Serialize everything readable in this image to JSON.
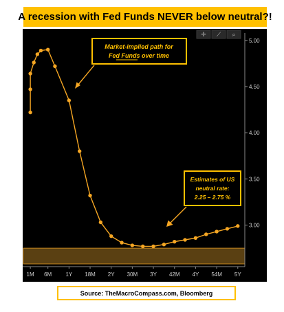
{
  "title": "A recession with Fed Funds NEVER below neutral?!",
  "source": "Source: TheMacroCompass.com, Bloomberg",
  "toolbar": {
    "icons": [
      "move-icon",
      "draw-icon",
      "zoom-icon"
    ],
    "move_glyph": "✛",
    "draw_glyph": "⟋",
    "zoom_glyph": "⌕"
  },
  "annotations": {
    "path_label": {
      "lines": [
        "Market-implied path for",
        "Fed Funds over time"
      ]
    },
    "neutral_label": {
      "lines": [
        "Estimates of US",
        "neutral rate:",
        "2.25 – 2.75 %"
      ]
    }
  },
  "colors": {
    "plot_background": "#000000",
    "series": "#f5a623",
    "band_fill": "#5a4012",
    "band_stroke": "#c8891f",
    "label_fill": "#ffc000",
    "axis_text": "#cfcfcf",
    "title_background": "#ffc000"
  },
  "chart_data": {
    "type": "line",
    "title": "A recession with Fed Funds NEVER below neutral?!",
    "x_tick_labels": [
      "1M",
      "6M",
      "1Y",
      "18M",
      "2Y",
      "30M",
      "3Y",
      "42M",
      "4Y",
      "54M",
      "5Y"
    ],
    "x_tick_months": [
      1,
      6,
      12,
      18,
      24,
      30,
      36,
      42,
      48,
      54,
      60
    ],
    "y_tick_labels": [
      "5.00",
      "4.50",
      "4.00",
      "3.50",
      "3.00"
    ],
    "y_ticks": [
      5.0,
      4.5,
      4.0,
      3.5,
      3.0
    ],
    "ylim": [
      2.55,
      5.08
    ],
    "xlim": [
      0,
      62
    ],
    "grid": false,
    "series": [
      {
        "x": [
          1,
          1,
          1,
          2,
          3,
          4,
          6,
          8,
          12,
          15,
          18,
          21,
          24,
          27,
          30,
          33,
          36,
          39,
          42,
          45,
          48,
          51,
          54,
          57,
          60
        ],
        "y": [
          4.22,
          4.47,
          4.64,
          4.76,
          4.85,
          4.89,
          4.9,
          4.72,
          4.35,
          3.8,
          3.32,
          3.03,
          2.88,
          2.81,
          2.78,
          2.77,
          2.77,
          2.79,
          2.82,
          2.84,
          2.86,
          2.9,
          2.93,
          2.96,
          2.99
        ]
      }
    ],
    "neutral_band": [
      2.25,
      2.75
    ]
  }
}
